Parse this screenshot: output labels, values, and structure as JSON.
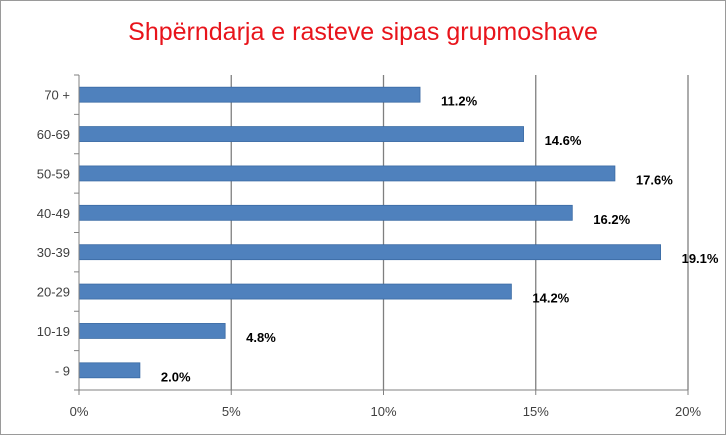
{
  "chart_data": {
    "type": "bar",
    "orientation": "horizontal",
    "title": "Shpërndarja e rasteve sipas grupmoshave",
    "categories": [
      "70 +",
      "60-69",
      "50-59",
      "40-49",
      "30-39",
      "20-29",
      "10-19",
      "- 9"
    ],
    "values": [
      11.2,
      14.6,
      17.6,
      16.2,
      19.1,
      14.2,
      4.8,
      2.0
    ],
    "data_labels": [
      "11.2%",
      "14.6%",
      "17.6%",
      "16.2%",
      "19.1%",
      "14.2%",
      "4.8%",
      "2.0%"
    ],
    "x_ticks": [
      0,
      5,
      10,
      15,
      20
    ],
    "x_tick_labels": [
      "0%",
      "5%",
      "10%",
      "15%",
      "20%"
    ],
    "xlim": [
      0,
      20
    ],
    "xlabel": "",
    "ylabel": "",
    "grid": "vertical",
    "legend": "none",
    "colors": {
      "bar": "#4f81bd",
      "bar_edge": "#3a6aa3",
      "title": "#e8141b",
      "grid": "#7f7f7f"
    }
  }
}
